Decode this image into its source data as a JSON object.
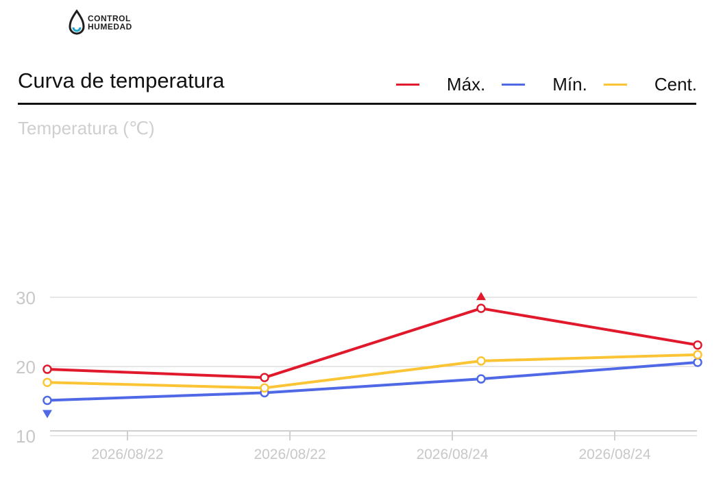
{
  "logo": {
    "line1": "CONTROL",
    "line2": "HUMEDAD"
  },
  "chart_data": {
    "type": "line",
    "title": "Curva de temperatura",
    "ylabel": "Temperatura (℃)",
    "xlabel": "",
    "ylim": [
      0,
      40
    ],
    "yticks": [
      10,
      20,
      30
    ],
    "grid": true,
    "legend_position": "top-right",
    "xtick_labels": [
      "2026/08/22",
      "2026/08/22",
      "2026/08/24",
      "2026/08/24"
    ],
    "series": [
      {
        "name": "Máx.",
        "color": "#e0192c",
        "values": [
          19.6,
          18.4,
          28.4,
          23.1
        ]
      },
      {
        "name": "Mín.",
        "color": "#4f68e6",
        "values": [
          15.1,
          16.2,
          18.2,
          20.6
        ]
      },
      {
        "name": "Cent.",
        "color": "#fbc434",
        "values": [
          17.7,
          16.9,
          20.8,
          21.7
        ]
      }
    ],
    "markers": [
      {
        "series": "Máx.",
        "index": 2,
        "kind": "max"
      },
      {
        "series": "Mín.",
        "index": 0,
        "kind": "min"
      }
    ]
  }
}
